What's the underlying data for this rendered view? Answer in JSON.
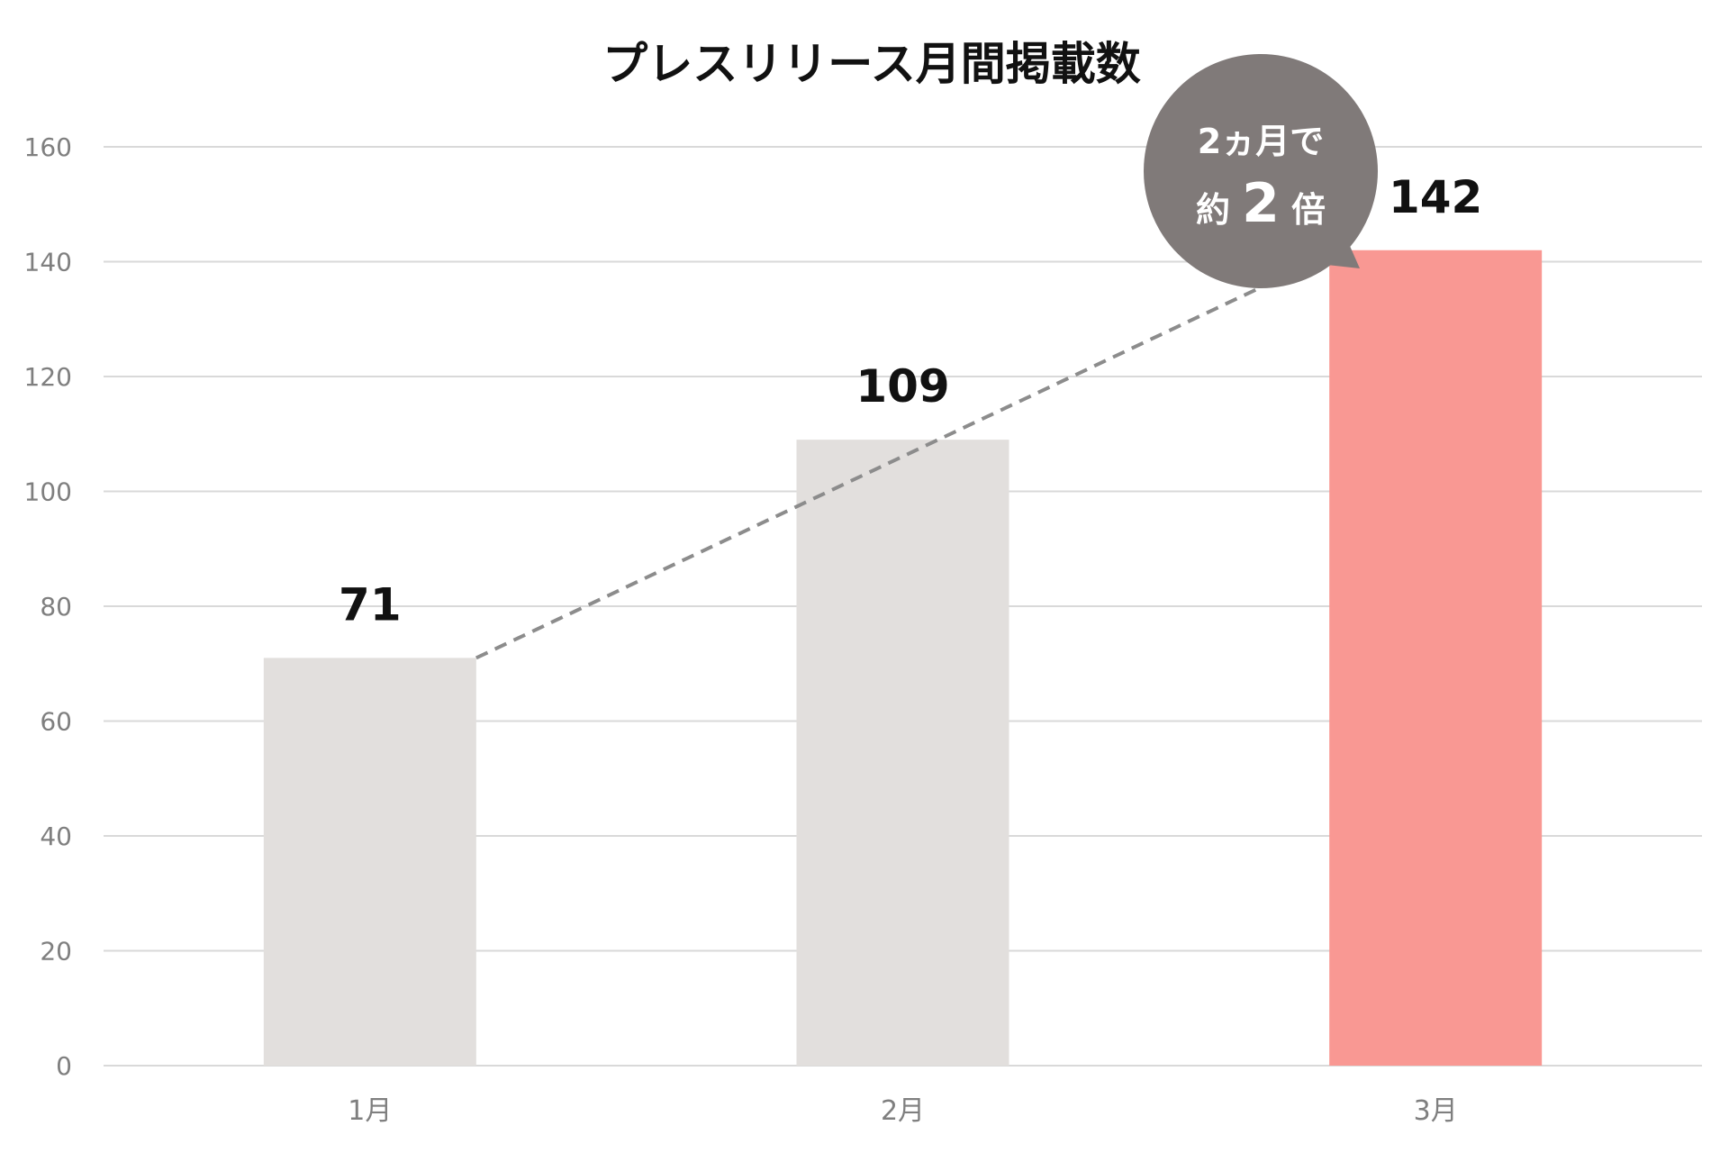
{
  "chart_data": {
    "type": "bar",
    "title": "プレスリリース月間掲載数",
    "categories": [
      "1月",
      "2月",
      "3月"
    ],
    "values": [
      71,
      109,
      142
    ],
    "data_labels": [
      "71",
      "109",
      "142"
    ],
    "ylim": [
      0,
      160
    ],
    "yticks": [
      "0",
      "20",
      "40",
      "60",
      "80",
      "100",
      "120",
      "140",
      "160"
    ],
    "grid": true,
    "xlabel": "",
    "ylabel": "",
    "colors": {
      "default_bar": "#e2dfdd",
      "highlight_bar": "#f99893",
      "gridline": "#d9d9d9",
      "trend_line": "#8c8c8c",
      "callout_bg": "#807a79"
    },
    "highlight_index": 2,
    "trend_line": {
      "from_index": 0,
      "to_index": 2,
      "style": "dashed"
    },
    "annotation": {
      "line1": "2ヵ月で",
      "line2_prefix": "約",
      "line2_number": "2",
      "line2_suffix": "倍"
    }
  }
}
